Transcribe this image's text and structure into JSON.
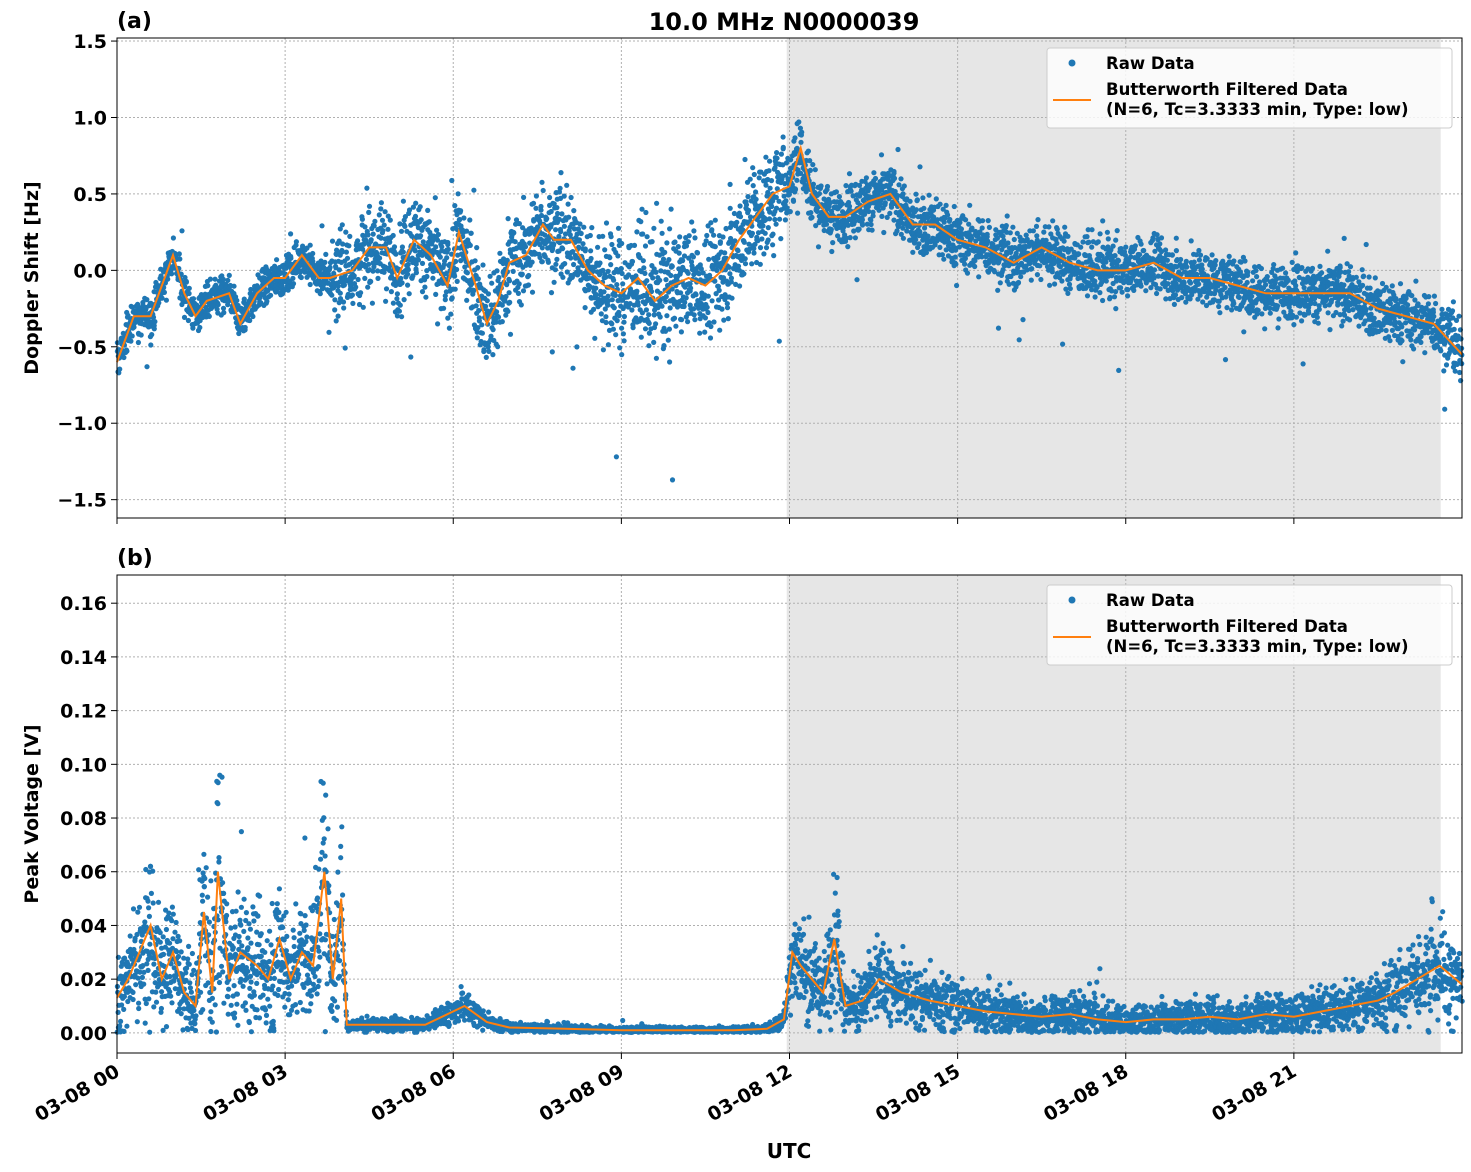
{
  "colors": {
    "raw": "#1f77b4",
    "filtered": "#ff7f0e",
    "night_shade": "#e6e6e6",
    "grid": "#b0b0b0"
  },
  "figure": {
    "title": "10.0 MHz N0000039",
    "xlabel": "UTC"
  },
  "chart_data": [
    {
      "type": "scatter",
      "panel_label": "(a)",
      "ylabel": "Doppler Shift [Hz]",
      "xlim_hours": [
        0,
        24
      ],
      "ylim": [
        -1.62,
        1.52
      ],
      "yticks": [
        -1.5,
        -1.0,
        -0.5,
        0.0,
        0.5,
        1.0,
        1.5
      ],
      "ytick_labels": [
        "−1.5",
        "−1.0",
        "−0.5",
        "0.0",
        "0.5",
        "1.0",
        "1.5"
      ],
      "xticks": [
        "03-08 00",
        "03-08 03",
        "03-08 06",
        "03-08 09",
        "03-08 12",
        "03-08 15",
        "03-08 18",
        "03-08 21"
      ],
      "shaded_region_hours": [
        11.95,
        23.62
      ],
      "grid": true,
      "legend": {
        "position": "upper right",
        "entries": [
          "Raw Data",
          "Butterworth Filtered Data",
          "(N=6, Tc=3.3333 min, Type: low)"
        ]
      },
      "series": [
        {
          "name": "Butterworth Filtered Data",
          "kind": "line",
          "x_hours": [
            0,
            0.3,
            0.6,
            1.0,
            1.2,
            1.4,
            1.6,
            2.0,
            2.2,
            2.5,
            2.8,
            3.0,
            3.3,
            3.6,
            3.8,
            4.2,
            4.5,
            4.8,
            5.0,
            5.3,
            5.6,
            5.9,
            6.1,
            6.4,
            6.6,
            6.8,
            7.0,
            7.3,
            7.6,
            7.8,
            8.1,
            8.4,
            8.7,
            9.0,
            9.3,
            9.6,
            9.9,
            10.2,
            10.5,
            10.8,
            11.1,
            11.4,
            11.7,
            12.0,
            12.2,
            12.4,
            12.7,
            13.0,
            13.4,
            13.8,
            14.2,
            14.6,
            15.0,
            15.5,
            16.0,
            16.5,
            17.0,
            17.5,
            18.0,
            18.5,
            19.0,
            19.5,
            20.0,
            20.5,
            21.0,
            21.5,
            22.0,
            22.5,
            23.0,
            23.5,
            24.0
          ],
          "values": [
            -0.6,
            -0.3,
            -0.3,
            0.1,
            -0.15,
            -0.3,
            -0.2,
            -0.15,
            -0.35,
            -0.15,
            -0.05,
            -0.05,
            0.1,
            -0.05,
            -0.05,
            0.0,
            0.15,
            0.15,
            -0.05,
            0.2,
            0.1,
            -0.1,
            0.25,
            -0.1,
            -0.35,
            -0.2,
            0.05,
            0.1,
            0.3,
            0.2,
            0.2,
            0.0,
            -0.1,
            -0.15,
            -0.05,
            -0.2,
            -0.1,
            -0.05,
            -0.1,
            0.0,
            0.2,
            0.35,
            0.5,
            0.55,
            0.8,
            0.5,
            0.35,
            0.35,
            0.45,
            0.5,
            0.3,
            0.3,
            0.2,
            0.15,
            0.05,
            0.15,
            0.05,
            0.0,
            0.0,
            0.05,
            -0.05,
            -0.05,
            -0.1,
            -0.15,
            -0.15,
            -0.15,
            -0.15,
            -0.25,
            -0.3,
            -0.35,
            -0.55
          ]
        }
      ]
    },
    {
      "type": "scatter",
      "panel_label": "(b)",
      "ylabel": "Peak Voltage [V]",
      "xlim_hours": [
        0,
        24
      ],
      "ylim": [
        -0.0075,
        0.1705
      ],
      "yticks": [
        0.0,
        0.02,
        0.04,
        0.06,
        0.08,
        0.1,
        0.12,
        0.14,
        0.16
      ],
      "ytick_labels": [
        "0.00",
        "0.02",
        "0.04",
        "0.06",
        "0.08",
        "0.10",
        "0.12",
        "0.14",
        "0.16"
      ],
      "xticks": [
        "03-08 00",
        "03-08 03",
        "03-08 06",
        "03-08 09",
        "03-08 12",
        "03-08 15",
        "03-08 18",
        "03-08 21"
      ],
      "shaded_region_hours": [
        11.95,
        23.62
      ],
      "grid": true,
      "legend": {
        "position": "upper right",
        "entries": [
          "Raw Data",
          "Butterworth Filtered Data",
          "(N=6, Tc=3.3333 min, Type: low)"
        ]
      },
      "series": [
        {
          "name": "Butterworth Filtered Data",
          "kind": "line",
          "x_hours": [
            0,
            0.2,
            0.4,
            0.6,
            0.8,
            1.0,
            1.2,
            1.4,
            1.55,
            1.7,
            1.8,
            2.0,
            2.2,
            2.5,
            2.7,
            2.9,
            3.1,
            3.3,
            3.5,
            3.7,
            3.85,
            4.0,
            4.1,
            4.3,
            5.0,
            5.5,
            6.0,
            6.2,
            6.6,
            7.0,
            8.0,
            9.0,
            10.0,
            11.0,
            11.6,
            11.9,
            12.05,
            12.2,
            12.4,
            12.6,
            12.8,
            13.0,
            13.3,
            13.6,
            14.0,
            14.5,
            15.0,
            15.5,
            16.0,
            16.5,
            17.0,
            17.5,
            18.0,
            18.5,
            19.0,
            19.5,
            20.0,
            20.5,
            21.0,
            21.5,
            22.0,
            22.5,
            22.8,
            23.2,
            23.6,
            24.0
          ],
          "values": [
            0.013,
            0.02,
            0.03,
            0.04,
            0.02,
            0.03,
            0.015,
            0.01,
            0.045,
            0.015,
            0.06,
            0.02,
            0.03,
            0.025,
            0.02,
            0.035,
            0.02,
            0.03,
            0.025,
            0.06,
            0.02,
            0.05,
            0.003,
            0.003,
            0.003,
            0.003,
            0.008,
            0.01,
            0.004,
            0.002,
            0.0015,
            0.001,
            0.001,
            0.001,
            0.0015,
            0.005,
            0.03,
            0.025,
            0.02,
            0.015,
            0.035,
            0.01,
            0.012,
            0.02,
            0.015,
            0.012,
            0.01,
            0.008,
            0.007,
            0.006,
            0.007,
            0.005,
            0.004,
            0.005,
            0.005,
            0.006,
            0.005,
            0.007,
            0.006,
            0.008,
            0.01,
            0.012,
            0.015,
            0.02,
            0.025,
            0.018
          ]
        }
      ]
    }
  ]
}
